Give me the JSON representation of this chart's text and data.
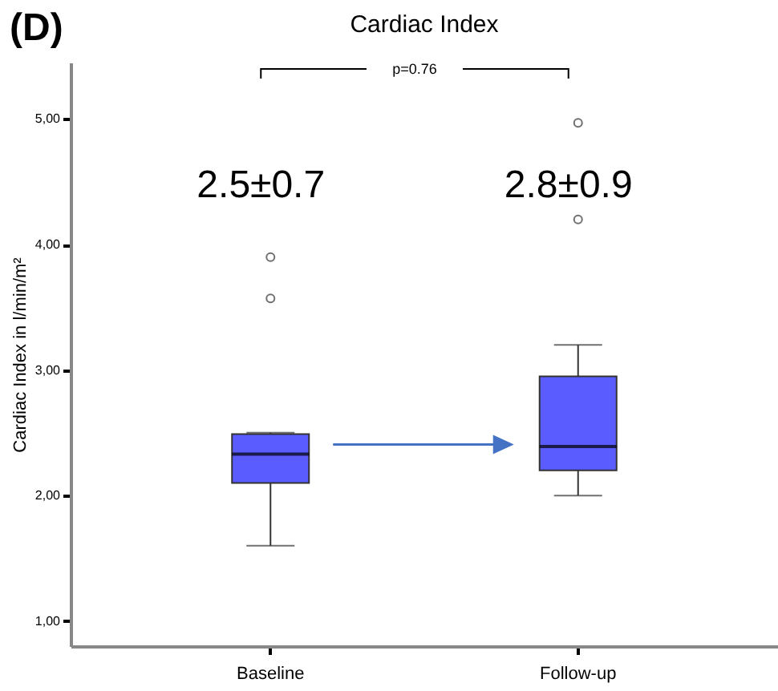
{
  "chart_data": {
    "type": "box",
    "title": "Cardiac Index",
    "ylabel": "Cardiac Index in l/min/m²",
    "categories": [
      "Baseline",
      "Follow-up"
    ],
    "series": [
      {
        "color": "#5a5cff",
        "boxes": [
          {
            "low": 1.6,
            "q1": 2.1,
            "median": 2.33,
            "q3": 2.49,
            "high": 2.5,
            "outliers": [
              3.57,
              3.9
            ]
          },
          {
            "low": 2.0,
            "q1": 2.2,
            "median": 2.39,
            "q3": 2.95,
            "high": 3.2,
            "outliers": [
              4.2,
              4.97
            ]
          }
        ]
      }
    ],
    "ylim": [
      0.8,
      5.45
    ],
    "yticks": [
      {
        "value": 1,
        "label": "1,00"
      },
      {
        "value": 2,
        "label": "2,00"
      },
      {
        "value": 3,
        "label": "3,00"
      },
      {
        "value": 4,
        "label": "4,00"
      },
      {
        "value": 5,
        "label": "5,00"
      }
    ],
    "grid": false,
    "annotations": [
      "(D)",
      "p=0.76",
      "2.5±0.7",
      "2.8±0.9"
    ]
  }
}
